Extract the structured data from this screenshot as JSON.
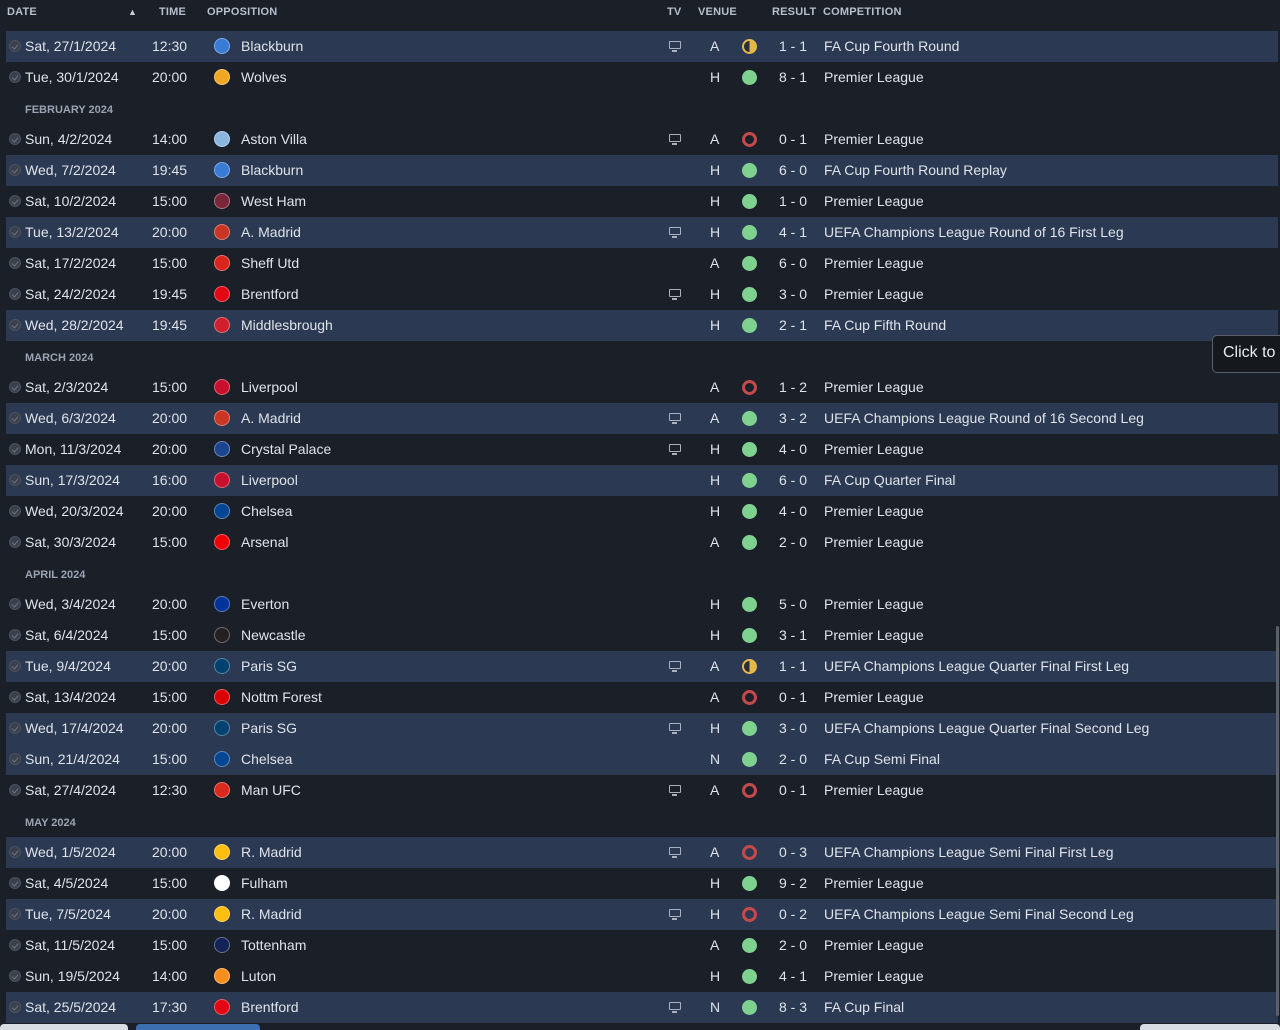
{
  "headers": {
    "date": "DATE",
    "time": "TIME",
    "opposition": "OPPOSITION",
    "tv": "TV",
    "venue": "VENUE",
    "result": "RESULT",
    "competition": "COMPETITION",
    "sort_indicator": "▲"
  },
  "tooltip": "Click to",
  "colors": {
    "win": "#7ed18f",
    "loss": "#c24a4a",
    "draw": "#e4b84c",
    "highlight_row": "#2b3a52",
    "background": "#1b1f27"
  },
  "rows": [
    {
      "type": "fixture",
      "hl": true,
      "date": "Sat, 27/1/2024",
      "time": "12:30",
      "opp": "Blackburn",
      "tv": true,
      "venue": "A",
      "result": "draw",
      "score": "1 - 1",
      "comp": "FA Cup Fourth Round",
      "crest": "#3a7bd5"
    },
    {
      "type": "fixture",
      "hl": false,
      "date": "Tue, 30/1/2024",
      "time": "20:00",
      "opp": "Wolves",
      "tv": false,
      "venue": "H",
      "result": "win",
      "score": "8 - 1",
      "comp": "Premier League",
      "crest": "#f0a722"
    },
    {
      "type": "month",
      "label": "FEBRUARY 2024"
    },
    {
      "type": "fixture",
      "hl": false,
      "date": "Sun, 4/2/2024",
      "time": "14:00",
      "opp": "Aston Villa",
      "tv": true,
      "venue": "A",
      "result": "loss",
      "score": "0 - 1",
      "comp": "Premier League",
      "crest": "#8ab6e0"
    },
    {
      "type": "fixture",
      "hl": true,
      "date": "Wed, 7/2/2024",
      "time": "19:45",
      "opp": "Blackburn",
      "tv": false,
      "venue": "H",
      "result": "win",
      "score": "6 - 0",
      "comp": "FA Cup Fourth Round Replay",
      "crest": "#3a7bd5"
    },
    {
      "type": "fixture",
      "hl": false,
      "date": "Sat, 10/2/2024",
      "time": "15:00",
      "opp": "West Ham",
      "tv": false,
      "venue": "H",
      "result": "win",
      "score": "1 - 0",
      "comp": "Premier League",
      "crest": "#7a263a"
    },
    {
      "type": "fixture",
      "hl": true,
      "date": "Tue, 13/2/2024",
      "time": "20:00",
      "opp": "A. Madrid",
      "tv": true,
      "venue": "H",
      "result": "win",
      "score": "4 - 1",
      "comp": "UEFA Champions League Round of 16 First Leg",
      "crest": "#cb3524"
    },
    {
      "type": "fixture",
      "hl": false,
      "date": "Sat, 17/2/2024",
      "time": "15:00",
      "opp": "Sheff Utd",
      "tv": false,
      "venue": "A",
      "result": "win",
      "score": "6 - 0",
      "comp": "Premier League",
      "crest": "#d9261c"
    },
    {
      "type": "fixture",
      "hl": false,
      "date": "Sat, 24/2/2024",
      "time": "19:45",
      "opp": "Brentford",
      "tv": true,
      "venue": "H",
      "result": "win",
      "score": "3 - 0",
      "comp": "Premier League",
      "crest": "#e30613"
    },
    {
      "type": "fixture",
      "hl": true,
      "date": "Wed, 28/2/2024",
      "time": "19:45",
      "opp": "Middlesbrough",
      "tv": false,
      "venue": "H",
      "result": "win",
      "score": "2 - 1",
      "comp": "FA Cup Fifth Round",
      "crest": "#d0202e"
    },
    {
      "type": "month",
      "label": "MARCH 2024"
    },
    {
      "type": "fixture",
      "hl": false,
      "date": "Sat, 2/3/2024",
      "time": "15:00",
      "opp": "Liverpool",
      "tv": false,
      "venue": "A",
      "result": "loss",
      "score": "1 - 2",
      "comp": "Premier League",
      "crest": "#c8102e"
    },
    {
      "type": "fixture",
      "hl": true,
      "date": "Wed, 6/3/2024",
      "time": "20:00",
      "opp": "A. Madrid",
      "tv": true,
      "venue": "A",
      "result": "win",
      "score": "3 - 2",
      "comp": "UEFA Champions League Round of 16 Second Leg",
      "crest": "#cb3524"
    },
    {
      "type": "fixture",
      "hl": false,
      "date": "Mon, 11/3/2024",
      "time": "20:00",
      "opp": "Crystal Palace",
      "tv": true,
      "venue": "H",
      "result": "win",
      "score": "4 - 0",
      "comp": "Premier League",
      "crest": "#1b458f"
    },
    {
      "type": "fixture",
      "hl": true,
      "date": "Sun, 17/3/2024",
      "time": "16:00",
      "opp": "Liverpool",
      "tv": false,
      "venue": "H",
      "result": "win",
      "score": "6 - 0",
      "comp": "FA Cup Quarter Final",
      "crest": "#c8102e"
    },
    {
      "type": "fixture",
      "hl": false,
      "date": "Wed, 20/3/2024",
      "time": "20:00",
      "opp": "Chelsea",
      "tv": false,
      "venue": "H",
      "result": "win",
      "score": "4 - 0",
      "comp": "Premier League",
      "crest": "#034694"
    },
    {
      "type": "fixture",
      "hl": false,
      "date": "Sat, 30/3/2024",
      "time": "15:00",
      "opp": "Arsenal",
      "tv": false,
      "venue": "A",
      "result": "win",
      "score": "2 - 0",
      "comp": "Premier League",
      "crest": "#ef0107"
    },
    {
      "type": "month",
      "label": "APRIL 2024"
    },
    {
      "type": "fixture",
      "hl": false,
      "date": "Wed, 3/4/2024",
      "time": "20:00",
      "opp": "Everton",
      "tv": false,
      "venue": "H",
      "result": "win",
      "score": "5 - 0",
      "comp": "Premier League",
      "crest": "#003399"
    },
    {
      "type": "fixture",
      "hl": false,
      "date": "Sat, 6/4/2024",
      "time": "15:00",
      "opp": "Newcastle",
      "tv": false,
      "venue": "H",
      "result": "win",
      "score": "3 - 1",
      "comp": "Premier League",
      "crest": "#241f20"
    },
    {
      "type": "fixture",
      "hl": true,
      "date": "Tue, 9/4/2024",
      "time": "20:00",
      "opp": "Paris SG",
      "tv": true,
      "venue": "A",
      "result": "draw",
      "score": "1 - 1",
      "comp": "UEFA Champions League Quarter Final First Leg",
      "crest": "#004170"
    },
    {
      "type": "fixture",
      "hl": false,
      "date": "Sat, 13/4/2024",
      "time": "15:00",
      "opp": "Nottm Forest",
      "tv": false,
      "venue": "A",
      "result": "loss",
      "score": "0 - 1",
      "comp": "Premier League",
      "crest": "#dd0000"
    },
    {
      "type": "fixture",
      "hl": true,
      "date": "Wed, 17/4/2024",
      "time": "20:00",
      "opp": "Paris SG",
      "tv": true,
      "venue": "H",
      "result": "win",
      "score": "3 - 0",
      "comp": "UEFA Champions League Quarter Final Second Leg",
      "crest": "#004170"
    },
    {
      "type": "fixture",
      "hl": true,
      "date": "Sun, 21/4/2024",
      "time": "15:00",
      "opp": "Chelsea",
      "tv": false,
      "venue": "N",
      "result": "win",
      "score": "2 - 0",
      "comp": "FA Cup Semi Final",
      "crest": "#034694"
    },
    {
      "type": "fixture",
      "hl": false,
      "date": "Sat, 27/4/2024",
      "time": "12:30",
      "opp": "Man UFC",
      "tv": true,
      "venue": "A",
      "result": "loss",
      "score": "0 - 1",
      "comp": "Premier League",
      "crest": "#da291c"
    },
    {
      "type": "month",
      "label": "MAY 2024"
    },
    {
      "type": "fixture",
      "hl": true,
      "date": "Wed, 1/5/2024",
      "time": "20:00",
      "opp": "R. Madrid",
      "tv": true,
      "venue": "A",
      "result": "loss",
      "score": "0 - 3",
      "comp": "UEFA Champions League Semi Final First Leg",
      "crest": "#febe10"
    },
    {
      "type": "fixture",
      "hl": false,
      "date": "Sat, 4/5/2024",
      "time": "15:00",
      "opp": "Fulham",
      "tv": false,
      "venue": "H",
      "result": "win",
      "score": "9 - 2",
      "comp": "Premier League",
      "crest": "#ffffff"
    },
    {
      "type": "fixture",
      "hl": true,
      "date": "Tue, 7/5/2024",
      "time": "20:00",
      "opp": "R. Madrid",
      "tv": true,
      "venue": "H",
      "result": "loss",
      "score": "0 - 2",
      "comp": "UEFA Champions League Semi Final Second Leg",
      "crest": "#febe10"
    },
    {
      "type": "fixture",
      "hl": false,
      "date": "Sat, 11/5/2024",
      "time": "15:00",
      "opp": "Tottenham",
      "tv": false,
      "venue": "A",
      "result": "win",
      "score": "2 - 0",
      "comp": "Premier League",
      "crest": "#132257"
    },
    {
      "type": "fixture",
      "hl": false,
      "date": "Sun, 19/5/2024",
      "time": "14:00",
      "opp": "Luton",
      "tv": false,
      "venue": "H",
      "result": "win",
      "score": "4 - 1",
      "comp": "Premier League",
      "crest": "#f78f1e"
    },
    {
      "type": "fixture",
      "hl": true,
      "date": "Sat, 25/5/2024",
      "time": "17:30",
      "opp": "Brentford",
      "tv": true,
      "venue": "N",
      "result": "win",
      "score": "8 - 3",
      "comp": "FA Cup Final",
      "crest": "#e30613"
    }
  ]
}
